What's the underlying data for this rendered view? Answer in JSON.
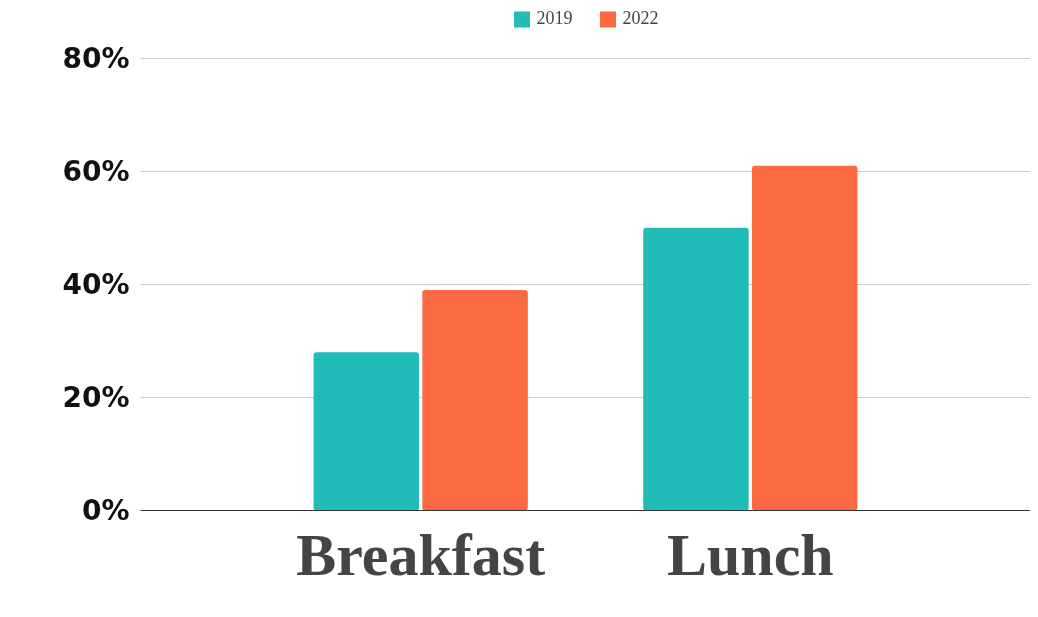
{
  "chart_data": {
    "type": "bar",
    "categories": [
      "Breakfast",
      "Lunch"
    ],
    "series": [
      {
        "name": "2019",
        "color": "#20bdb8",
        "values": [
          28,
          50
        ]
      },
      {
        "name": "2022",
        "color": "#fb6a42",
        "values": [
          39,
          61
        ]
      }
    ],
    "ylim": [
      0,
      80
    ],
    "yticks": [
      {
        "value": 0,
        "label": "0%"
      },
      {
        "value": 20,
        "label": "20%"
      },
      {
        "value": 40,
        "label": "40%"
      },
      {
        "value": 60,
        "label": "60%"
      },
      {
        "value": 80,
        "label": "80%"
      }
    ],
    "grid": "y",
    "legend": "top"
  }
}
